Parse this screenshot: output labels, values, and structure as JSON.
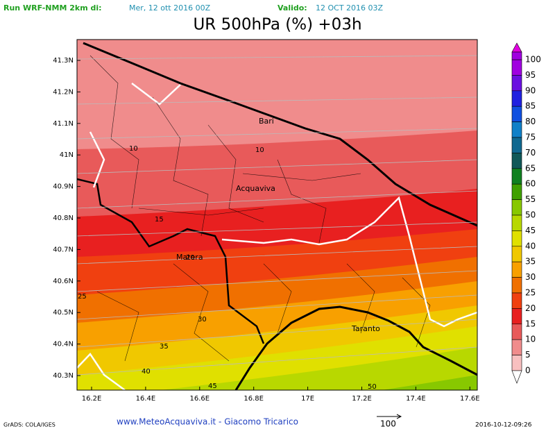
{
  "header": {
    "run": "Run WRF-NMM 2km di:",
    "run_date": "Mer, 12 ott 2016 00Z",
    "valid": "Valido:",
    "valid_date": "12 OCT 2016 03Z",
    "title": "UR 500hPa (%) +03h"
  },
  "map": {
    "lat_labels": [
      "41.3N",
      "41.2N",
      "41.1N",
      "41N",
      "40.9N",
      "40.8N",
      "40.7N",
      "40.6N",
      "40.5N",
      "40.4N",
      "40.3N"
    ],
    "lon_labels": [
      "16.2E",
      "16.4E",
      "16.6E",
      "16.8E",
      "17E",
      "17.2E",
      "17.4E",
      "17.6E"
    ],
    "places": [
      "Bari",
      "Acquaviva",
      "Matera",
      "Taranto"
    ],
    "contour_labels": [
      10,
      10,
      15,
      20,
      25,
      30,
      35,
      40,
      45,
      50
    ]
  },
  "colorbar": {
    "labels": [
      100,
      95,
      90,
      85,
      80,
      75,
      70,
      65,
      60,
      55,
      50,
      45,
      40,
      35,
      30,
      25,
      20,
      15,
      10,
      5,
      0
    ],
    "colors": [
      "#e000e0",
      "#a000e0",
      "#6a10e0",
      "#2020e0",
      "#1050e0",
      "#1080c8",
      "#106890",
      "#105858",
      "#108020",
      "#40a000",
      "#88c800",
      "#b8d800",
      "#e0e000",
      "#f0c800",
      "#f8a000",
      "#f07000",
      "#f04010",
      "#e82020",
      "#e85a5a",
      "#f08c8c",
      "#f8c0c0",
      "#ffffff"
    ]
  },
  "footer": {
    "software": "GrADS: COLA/IGES",
    "credit": "www.MeteoAcquaviva.it - Giacomo Tricarico",
    "vector_ref": "100",
    "timestamp": "2016-10-12-09:26"
  }
}
